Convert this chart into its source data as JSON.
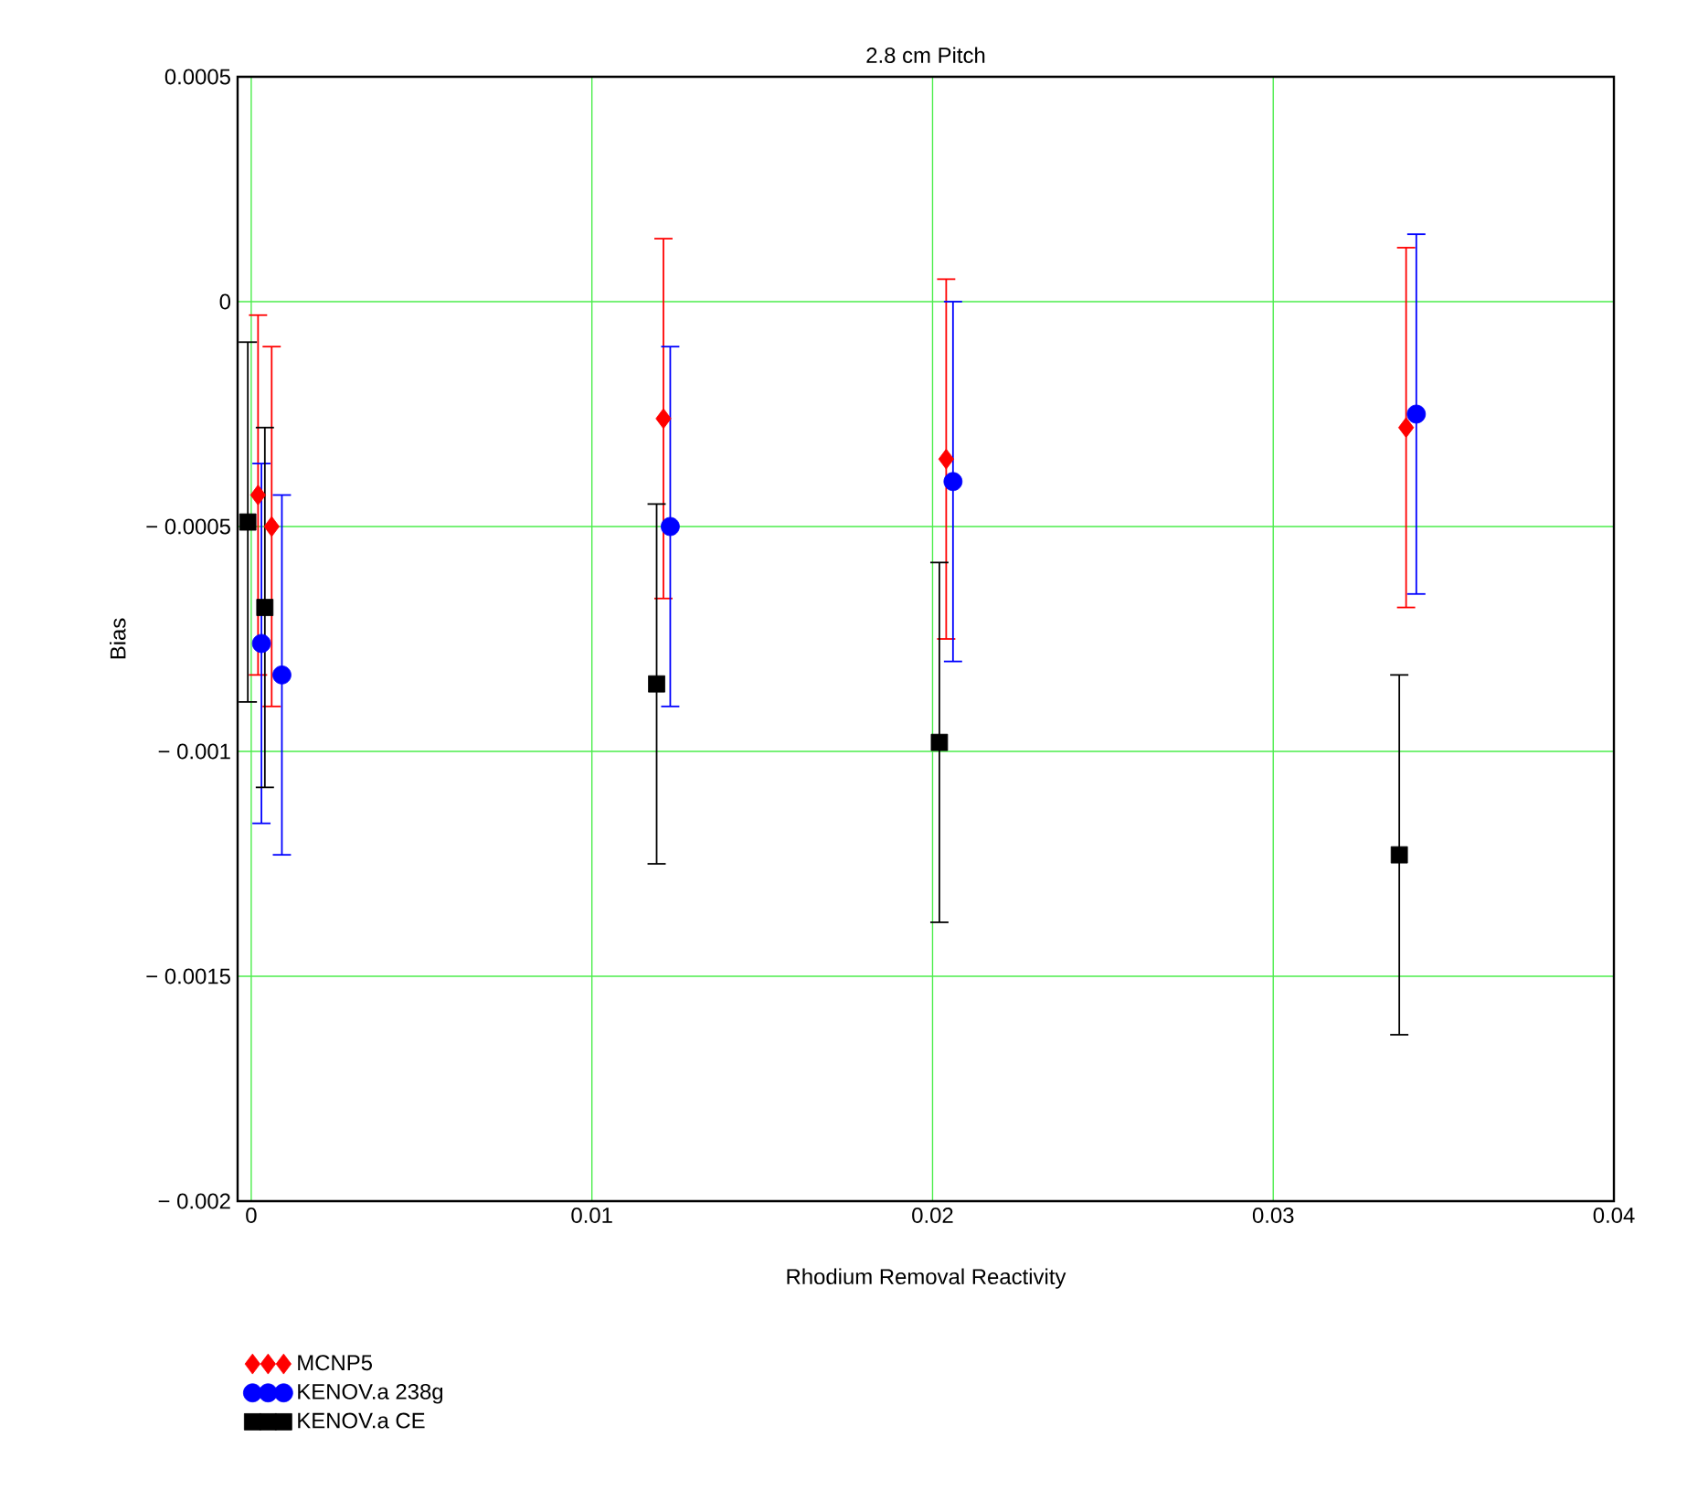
{
  "chart_data": {
    "type": "scatter",
    "title": "2.8 cm Pitch",
    "xlabel": "Rhodium Removal Reactivity",
    "ylabel": "Bias",
    "xlim": [
      -0.0004,
      0.04
    ],
    "ylim": [
      -0.002,
      0.0005
    ],
    "xticks": [
      0,
      0.01,
      0.02,
      0.03,
      0.04
    ],
    "yticks": [
      {
        "value": -0.002,
        "label": "− 0.002"
      },
      {
        "value": -0.0015,
        "label": "− 0.0015"
      },
      {
        "value": -0.001,
        "label": "− 0.001"
      },
      {
        "value": -0.0005,
        "label": "− 0.0005"
      },
      0,
      0.0005
    ],
    "grid": true,
    "legend": "bottom left",
    "series": [
      {
        "name": "MCNP5",
        "color": "#ff0000",
        "marker": "diamond",
        "x": [
          0.0002,
          0.0006,
          0.0121,
          0.0204,
          0.0339
        ],
        "values": [
          -0.00043,
          -0.0005,
          -0.00026,
          -0.00035,
          -0.00028
        ],
        "errors": [
          0.0004,
          0.0004,
          0.0004,
          0.0004,
          0.0004
        ]
      },
      {
        "name": "KENOV.a 238g",
        "color": "#0000ff",
        "marker": "circle",
        "x": [
          0.0003,
          0.0009,
          0.0123,
          0.0206,
          0.0342
        ],
        "values": [
          -0.00076,
          -0.00083,
          -0.0005,
          -0.0004,
          -0.00025
        ],
        "errors": [
          0.0004,
          0.0004,
          0.0004,
          0.0004,
          0.0004
        ]
      },
      {
        "name": "KENOV.a CE",
        "color": "#000000",
        "marker": "square",
        "x": [
          -0.0001,
          0.0004,
          0.0119,
          0.0202,
          0.0337
        ],
        "values": [
          -0.00049,
          -0.00068,
          -0.00085,
          -0.00098,
          -0.00123
        ],
        "errors": [
          0.0004,
          0.0004,
          0.0004,
          0.0004,
          0.0004
        ]
      }
    ]
  }
}
